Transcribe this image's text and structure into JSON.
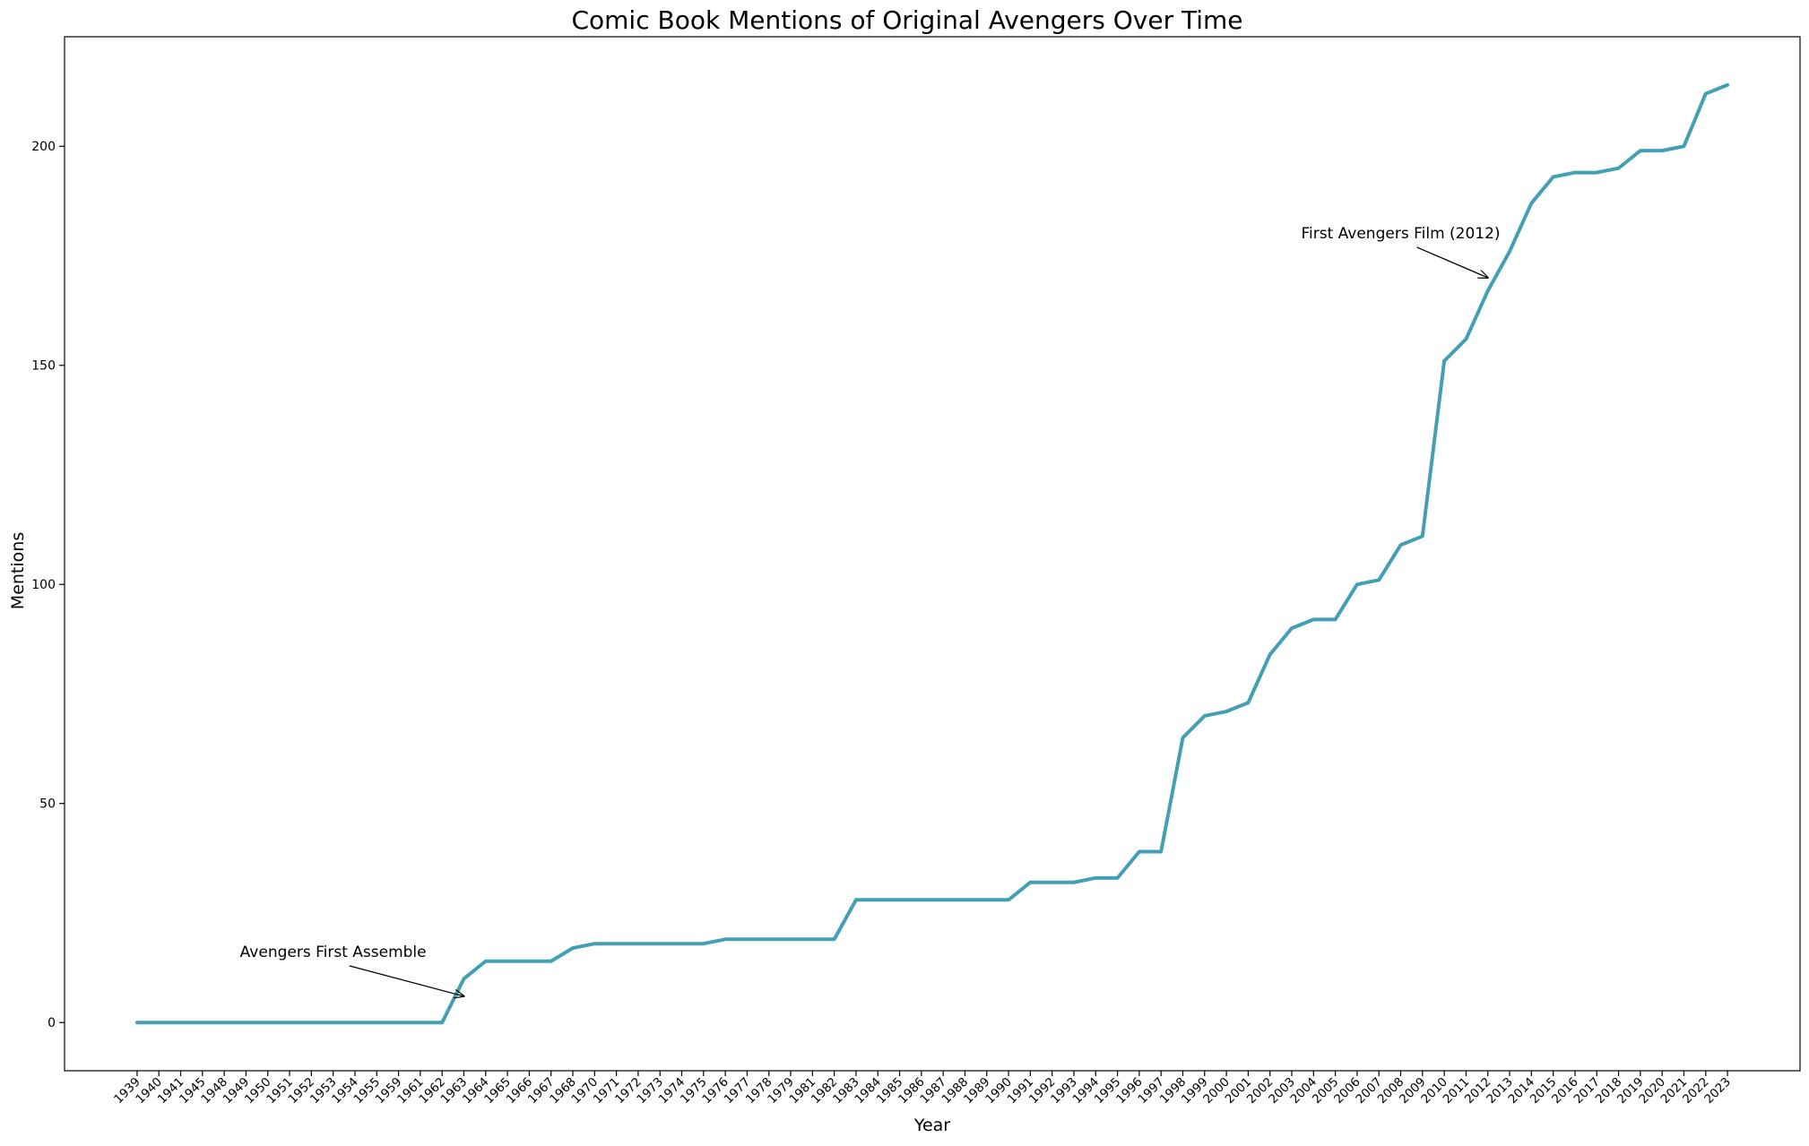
{
  "chart_data": {
    "type": "line",
    "title": "Comic Book Mentions of Original Avengers Over Time",
    "xlabel": "Year",
    "ylabel": "Mentions",
    "x": [
      "1939",
      "1940",
      "1941",
      "1945",
      "1948",
      "1949",
      "1950",
      "1951",
      "1952",
      "1953",
      "1954",
      "1955",
      "1959",
      "1961",
      "1962",
      "1963",
      "1964",
      "1965",
      "1966",
      "1967",
      "1968",
      "1970",
      "1971",
      "1972",
      "1973",
      "1974",
      "1975",
      "1976",
      "1977",
      "1978",
      "1979",
      "1981",
      "1982",
      "1983",
      "1984",
      "1985",
      "1986",
      "1987",
      "1988",
      "1989",
      "1990",
      "1991",
      "1992",
      "1993",
      "1994",
      "1995",
      "1996",
      "1997",
      "1998",
      "1999",
      "2000",
      "2001",
      "2002",
      "2003",
      "2004",
      "2005",
      "2006",
      "2007",
      "2008",
      "2009",
      "2010",
      "2011",
      "2012",
      "2013",
      "2014",
      "2015",
      "2016",
      "2017",
      "2018",
      "2019",
      "2020",
      "2021",
      "2022",
      "2023"
    ],
    "series": [
      {
        "values": [
          0,
          0,
          0,
          0,
          0,
          0,
          0,
          0,
          0,
          0,
          0,
          0,
          0,
          0,
          0,
          10,
          14,
          14,
          14,
          14,
          17,
          18,
          18,
          18,
          18,
          18,
          18,
          19,
          19,
          19,
          19,
          19,
          19,
          28,
          28,
          28,
          28,
          28,
          28,
          28,
          28,
          32,
          32,
          32,
          33,
          33,
          39,
          39,
          65,
          70,
          71,
          73,
          84,
          90,
          92,
          92,
          100,
          101,
          109,
          111,
          151,
          156,
          167,
          176,
          187,
          193,
          194,
          194,
          195,
          199,
          199,
          200,
          212,
          214
        ],
        "color": "#439fb4"
      }
    ],
    "ylim": [
      -11,
      225
    ],
    "yticks": [
      0,
      50,
      100,
      150,
      200
    ],
    "grid": false,
    "annotations": [
      {
        "text": "Avengers First Assemble",
        "x": "1963",
        "y": 6,
        "text_x": "1953",
        "text_y": 15
      },
      {
        "text": "First Avengers Film (2012)",
        "x": "2012",
        "y": 170,
        "text_x": "2008",
        "text_y": 179
      }
    ]
  }
}
